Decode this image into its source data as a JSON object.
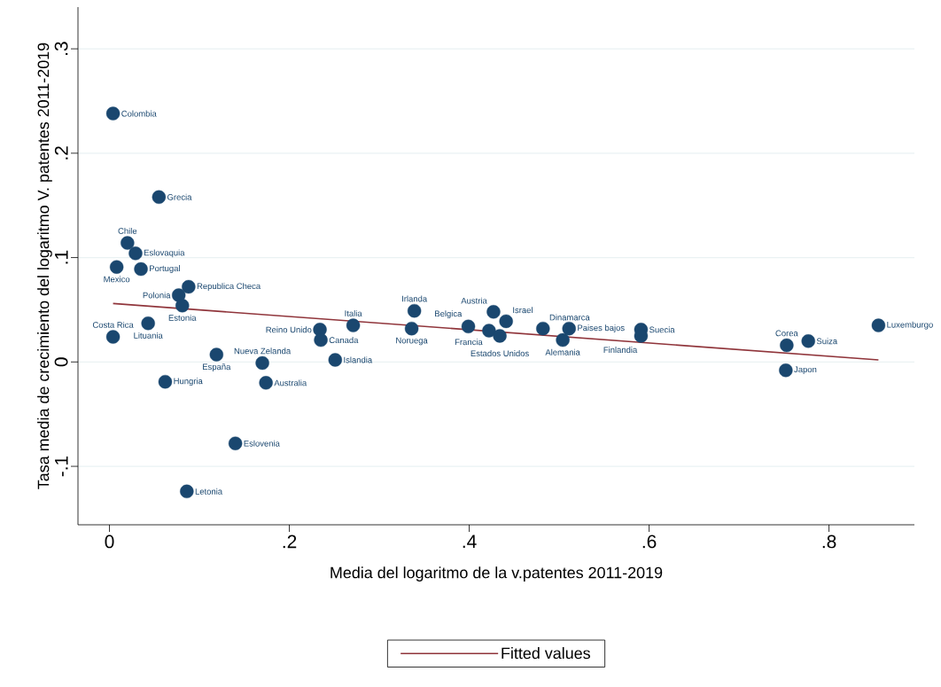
{
  "chart_data": {
    "type": "scatter",
    "xlabel": "Media del logaritmo de la v.patentes 2011-2019",
    "ylabel": "Tasa media de crecimiento del logaritmo V. patentes 2011-2019",
    "xlim": [
      -0.035,
      0.895
    ],
    "ylim": [
      -0.156,
      0.34
    ],
    "xticks": [
      0,
      {
        "value": 0.2,
        "label": ".2"
      },
      {
        "value": 0.4,
        "label": ".4"
      },
      {
        "value": 0.6,
        "label": ".6"
      },
      {
        "value": 0.8,
        "label": ".8"
      }
    ],
    "yticks": [
      {
        "value": -0.1,
        "label": "-.1"
      },
      0,
      {
        "value": 0.1,
        "label": ".1"
      },
      {
        "value": 0.2,
        "label": ".2"
      },
      {
        "value": 0.3,
        "label": ".3"
      }
    ],
    "grid": "y",
    "legend": "bottom",
    "series": [
      {
        "color": "#1a476f",
        "marker": "circle",
        "x": [
          0.004,
          0.055,
          0.02,
          0.029,
          0.008,
          0.035,
          0.088,
          0.077,
          0.081,
          0.043,
          0.004,
          0.119,
          0.17,
          0.251,
          0.062,
          0.174,
          0.14,
          0.086,
          0.234,
          0.235,
          0.271,
          0.339,
          0.336,
          0.399,
          0.427,
          0.441,
          0.422,
          0.434,
          0.482,
          0.504,
          0.511,
          0.591,
          0.591,
          0.753,
          0.777,
          0.752,
          0.855
        ],
        "values": [
          0.238,
          0.158,
          0.114,
          0.104,
          0.091,
          0.089,
          0.072,
          0.064,
          0.054,
          0.037,
          0.024,
          0.007,
          -0.001,
          0.002,
          -0.019,
          -0.02,
          -0.078,
          -0.124,
          0.031,
          0.021,
          0.035,
          0.049,
          0.032,
          0.034,
          0.048,
          0.039,
          0.03,
          0.025,
          0.032,
          0.021,
          0.032,
          0.031,
          0.025,
          0.016,
          0.02,
          -0.008,
          0.035
        ]
      },
      {
        "name": "Fitted values",
        "type": "line",
        "color": "#90353b",
        "marker": "none",
        "x": [
          0.004,
          0.855
        ],
        "values": [
          0.056,
          0.002
        ]
      }
    ],
    "annotations": [
      {
        "text": "Colombia",
        "x": 0.004,
        "y": 0.238
      },
      {
        "text": "Grecia",
        "x": 0.055,
        "y": 0.158
      },
      {
        "text": "Chile",
        "x": 0.02,
        "y": 0.114
      },
      {
        "text": "Eslovaquia",
        "x": 0.029,
        "y": 0.104
      },
      {
        "text": "Mexico",
        "x": 0.008,
        "y": 0.091
      },
      {
        "text": "Portugal",
        "x": 0.035,
        "y": 0.089
      },
      {
        "text": "Republica Checa",
        "x": 0.088,
        "y": 0.072
      },
      {
        "text": "Polonia",
        "x": 0.077,
        "y": 0.064
      },
      {
        "text": "Estonia",
        "x": 0.081,
        "y": 0.054
      },
      {
        "text": "Lituania",
        "x": 0.043,
        "y": 0.037
      },
      {
        "text": "Costa Rica",
        "x": 0.004,
        "y": 0.024
      },
      {
        "text": "España",
        "x": 0.119,
        "y": 0.007
      },
      {
        "text": "Nueva Zelanda",
        "x": 0.17,
        "y": -0.001
      },
      {
        "text": "Islandia",
        "x": 0.251,
        "y": 0.002
      },
      {
        "text": "Hungria",
        "x": 0.062,
        "y": -0.019
      },
      {
        "text": "Australia",
        "x": 0.174,
        "y": -0.02
      },
      {
        "text": "Eslovenia",
        "x": 0.14,
        "y": -0.078
      },
      {
        "text": "Letonia",
        "x": 0.086,
        "y": -0.124
      },
      {
        "text": "Reino Unido",
        "x": 0.234,
        "y": 0.031
      },
      {
        "text": "Canada",
        "x": 0.235,
        "y": 0.021
      },
      {
        "text": "Italia",
        "x": 0.271,
        "y": 0.035
      },
      {
        "text": "Irlanda",
        "x": 0.339,
        "y": 0.049
      },
      {
        "text": "Noruega",
        "x": 0.336,
        "y": 0.032
      },
      {
        "text": "Belgica",
        "x": 0.399,
        "y": 0.034
      },
      {
        "text": "Austria",
        "x": 0.427,
        "y": 0.048
      },
      {
        "text": "Israel",
        "x": 0.441,
        "y": 0.039
      },
      {
        "text": "Francia",
        "x": 0.422,
        "y": 0.03
      },
      {
        "text": "Estados Unidos",
        "x": 0.434,
        "y": 0.025
      },
      {
        "text": "Dinamarca",
        "x": 0.482,
        "y": 0.032
      },
      {
        "text": "Alemania",
        "x": 0.504,
        "y": 0.021
      },
      {
        "text": "Paises bajos",
        "x": 0.511,
        "y": 0.032
      },
      {
        "text": "Suecia",
        "x": 0.591,
        "y": 0.031
      },
      {
        "text": "Finlandia",
        "x": 0.591,
        "y": 0.025
      },
      {
        "text": "Corea",
        "x": 0.753,
        "y": 0.016
      },
      {
        "text": "Suiza",
        "x": 0.777,
        "y": 0.02
      },
      {
        "text": "Japon",
        "x": 0.752,
        "y": -0.008
      },
      {
        "text": "Luxemburgo",
        "x": 0.855,
        "y": 0.035
      }
    ]
  }
}
